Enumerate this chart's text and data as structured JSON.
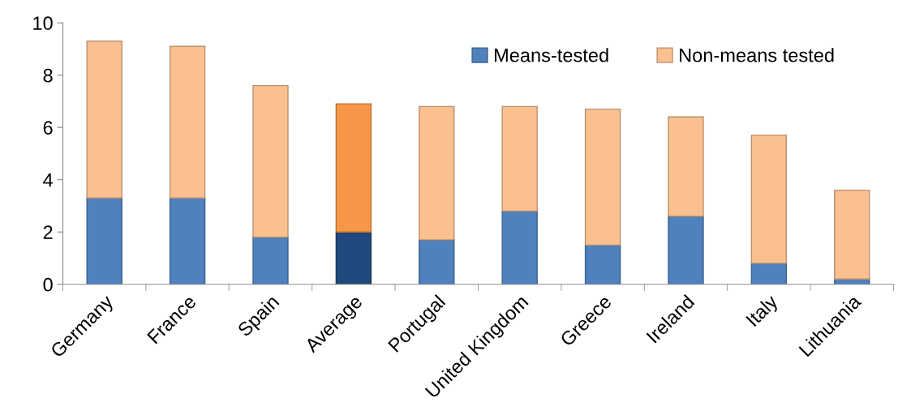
{
  "chart_data": {
    "type": "bar",
    "stacked": true,
    "categories": [
      "Germany",
      "France",
      "Spain",
      "Average",
      "Portugal",
      "United Kingdom",
      "Greece",
      "Ireland",
      "Italy",
      "Lithuania"
    ],
    "series": [
      {
        "name": "Means-tested",
        "color": "#4f81bd",
        "colors": [
          "#4f81bd",
          "#4f81bd",
          "#4f81bd",
          "#1f497d",
          "#4f81bd",
          "#4f81bd",
          "#4f81bd",
          "#4f81bd",
          "#4f81bd",
          "#4f81bd"
        ],
        "values": [
          3.3,
          3.3,
          1.8,
          2.0,
          1.7,
          2.8,
          1.5,
          2.6,
          0.8,
          0.2
        ]
      },
      {
        "name": "Non-means tested",
        "color": "#fac090",
        "colors": [
          "#fac090",
          "#fac090",
          "#fac090",
          "#f79646",
          "#fac090",
          "#fac090",
          "#fac090",
          "#fac090",
          "#fac090",
          "#fac090"
        ],
        "values": [
          6.0,
          5.8,
          5.8,
          4.9,
          5.1,
          4.0,
          5.2,
          3.8,
          4.9,
          3.4
        ]
      }
    ],
    "ylim": [
      0,
      10
    ],
    "yticks": [
      0,
      2,
      4,
      6,
      8,
      10
    ],
    "grid": false,
    "legend": "top right"
  }
}
